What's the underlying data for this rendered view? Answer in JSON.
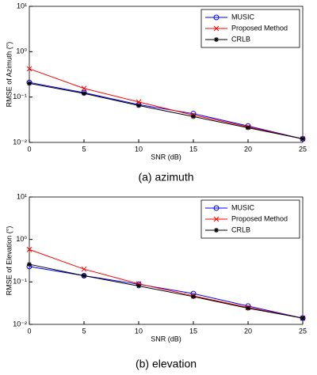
{
  "chart_data": [
    {
      "type": "line",
      "caption": "(a) azimuth",
      "xlabel": "SNR (dB)",
      "ylabel": "RMSE of Azimuth (°)",
      "x": [
        0,
        5,
        10,
        15,
        20,
        25
      ],
      "xlim": [
        0,
        25
      ],
      "xticks": [
        0,
        5,
        10,
        15,
        20,
        25
      ],
      "ylim": [
        0.01,
        10
      ],
      "log_y": true,
      "yticks": [
        {
          "value": 0.01,
          "label": "10⁻²"
        },
        {
          "value": 0.1,
          "label": "10⁻¹"
        },
        {
          "value": 1,
          "label": "10⁰"
        },
        {
          "value": 10,
          "label": "10¹"
        }
      ],
      "legend": "upper right",
      "series": [
        {
          "name": "MUSIC",
          "color": "#0000ff",
          "marker": "o",
          "values": [
            0.21,
            0.125,
            0.068,
            0.043,
            0.023,
            0.012
          ]
        },
        {
          "name": "Proposed Method",
          "color": "#ff0000",
          "marker": "x",
          "values": [
            0.42,
            0.155,
            0.078,
            0.04,
            0.022,
            0.012
          ]
        },
        {
          "name": "CRLB",
          "color": "#000000",
          "marker": "*",
          "values": [
            0.2,
            0.12,
            0.065,
            0.037,
            0.021,
            0.012
          ]
        }
      ]
    },
    {
      "type": "line",
      "caption": "(b) elevation",
      "xlabel": "SNR (dB)",
      "ylabel": "RMSE of Elevation (°)",
      "x": [
        0,
        5,
        10,
        15,
        20,
        25
      ],
      "xlim": [
        0,
        25
      ],
      "xticks": [
        0,
        5,
        10,
        15,
        20,
        25
      ],
      "ylim": [
        0.01,
        10
      ],
      "log_y": true,
      "yticks": [
        {
          "value": 0.01,
          "label": "10⁻²"
        },
        {
          "value": 0.1,
          "label": "10⁻¹"
        },
        {
          "value": 1,
          "label": "10⁰"
        },
        {
          "value": 10,
          "label": "10¹"
        }
      ],
      "legend": "upper right",
      "series": [
        {
          "name": "MUSIC",
          "color": "#0000ff",
          "marker": "o",
          "values": [
            0.23,
            0.14,
            0.088,
            0.053,
            0.027,
            0.014
          ]
        },
        {
          "name": "Proposed Method",
          "color": "#ff0000",
          "marker": "x",
          "values": [
            0.58,
            0.2,
            0.09,
            0.047,
            0.025,
            0.014
          ]
        },
        {
          "name": "CRLB",
          "color": "#000000",
          "marker": "*",
          "values": [
            0.26,
            0.14,
            0.08,
            0.045,
            0.024,
            0.014
          ]
        }
      ]
    }
  ]
}
